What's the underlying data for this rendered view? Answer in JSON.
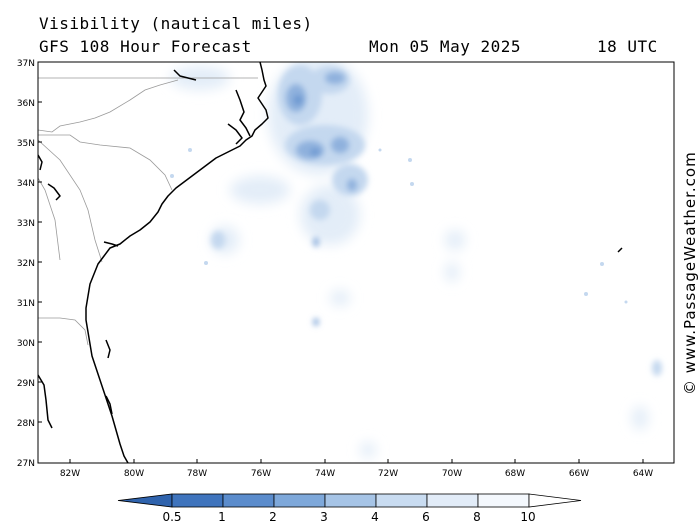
{
  "header": {
    "title": "Visibility (nautical miles)",
    "subtitle": "GFS 108 Hour Forecast",
    "date": "Mon 05 May 2025",
    "time": "18 UTC"
  },
  "map": {
    "lat_labels": [
      "37N",
      "36N",
      "35N",
      "34N",
      "33N",
      "32N",
      "31N",
      "30N",
      "29N",
      "28N",
      "27N"
    ],
    "lon_labels": [
      "82W",
      "80W",
      "78W",
      "76W",
      "74W",
      "72W",
      "70W",
      "68W",
      "66W",
      "64W"
    ]
  },
  "colorbar": {
    "labels": [
      "0.5",
      "1",
      "2",
      "3",
      "4",
      "6",
      "8",
      "10"
    ],
    "colors": [
      "#3f74bd",
      "#5b8ccc",
      "#7ea8da",
      "#a6c4e6",
      "#c9dcf1",
      "#e2ecf8",
      "#f4f8fd",
      "#ffffff"
    ]
  },
  "credit": "© www.PassageWeather.com"
}
